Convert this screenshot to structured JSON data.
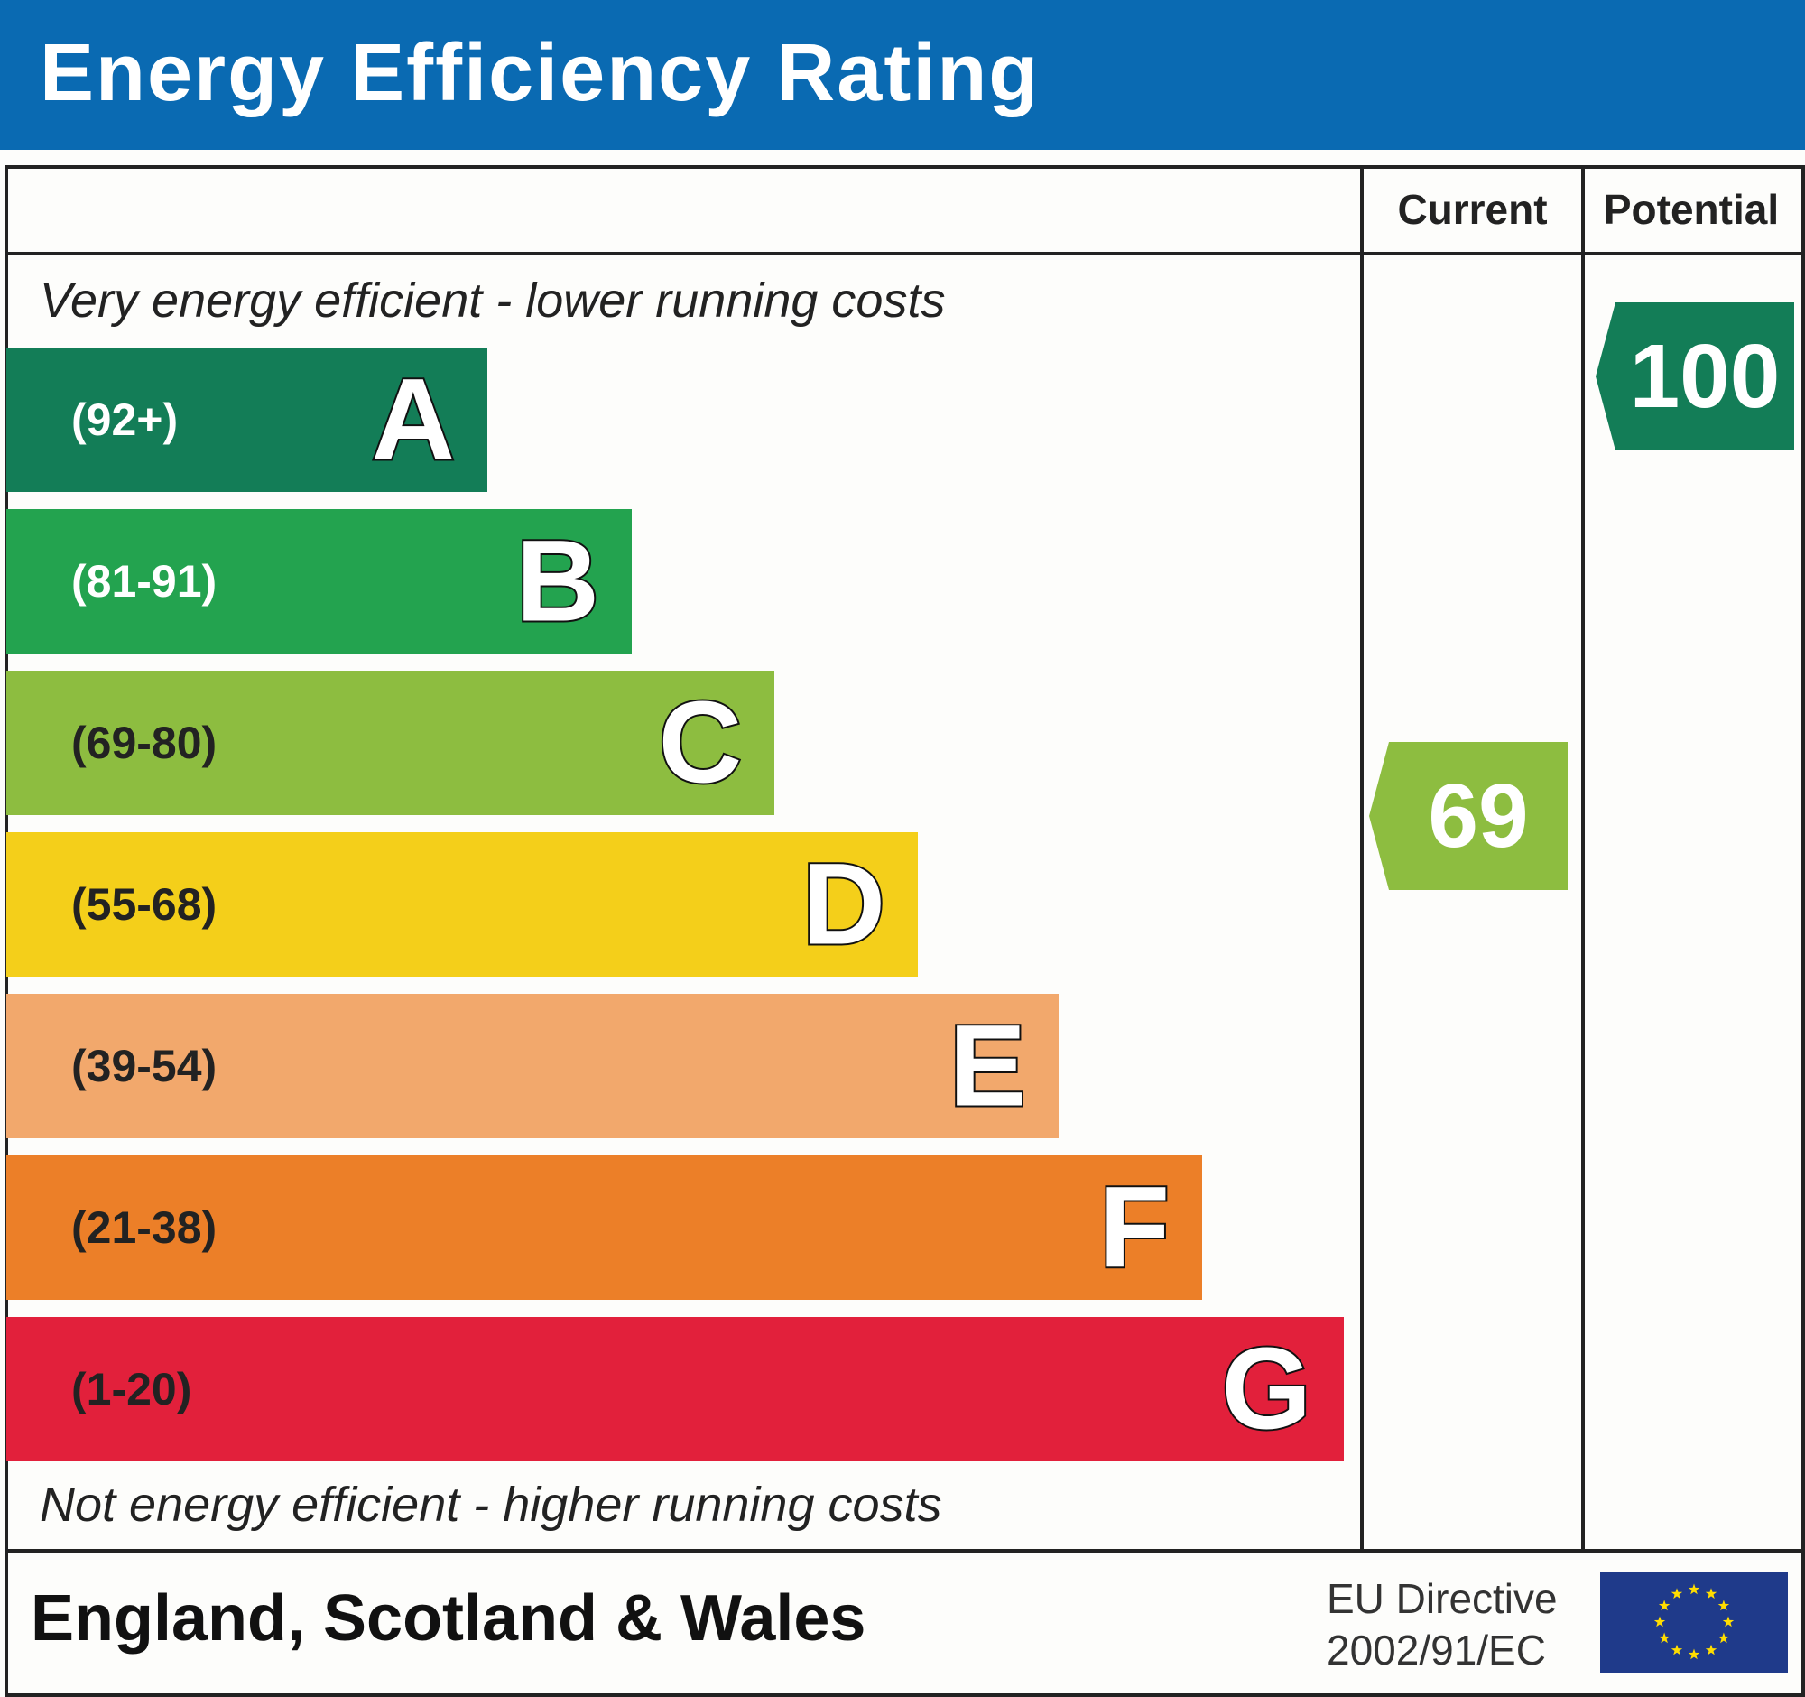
{
  "header": {
    "title": "Energy Efficiency Rating",
    "color": "#0a6ab2"
  },
  "columns": {
    "current": "Current",
    "potential": "Potential"
  },
  "notes": {
    "top": "Very energy efficient - lower running costs",
    "bottom": "Not energy efficient - higher running costs"
  },
  "bands": [
    {
      "letter": "A",
      "range": "(92+)",
      "color": "#137d57",
      "text_color": "#ffffff"
    },
    {
      "letter": "B",
      "range": "(81-91)",
      "color": "#23a34f",
      "text_color": "#ffffff"
    },
    {
      "letter": "C",
      "range": "(69-80)",
      "color": "#8dbd40",
      "text_color": "#222222"
    },
    {
      "letter": "D",
      "range": "(55-68)",
      "color": "#f4cf1a",
      "text_color": "#222222"
    },
    {
      "letter": "E",
      "range": "(39-54)",
      "color": "#f2a86c",
      "text_color": "#222222"
    },
    {
      "letter": "F",
      "range": "(21-38)",
      "color": "#ec7f28",
      "text_color": "#222222"
    },
    {
      "letter": "G",
      "range": "(1-20)",
      "color": "#e2203b",
      "text_color": "#222222"
    }
  ],
  "ratings": {
    "current": {
      "value": "69",
      "band": "C",
      "color": "#8dbd40"
    },
    "potential": {
      "value": "100",
      "band": "A",
      "color": "#137d57"
    }
  },
  "footer": {
    "region": "England, Scotland & Wales",
    "directive_line1": "EU Directive",
    "directive_line2": "2002/91/EC",
    "flag_color": "#1f3a8a",
    "star_color": "#ffdd00"
  }
}
